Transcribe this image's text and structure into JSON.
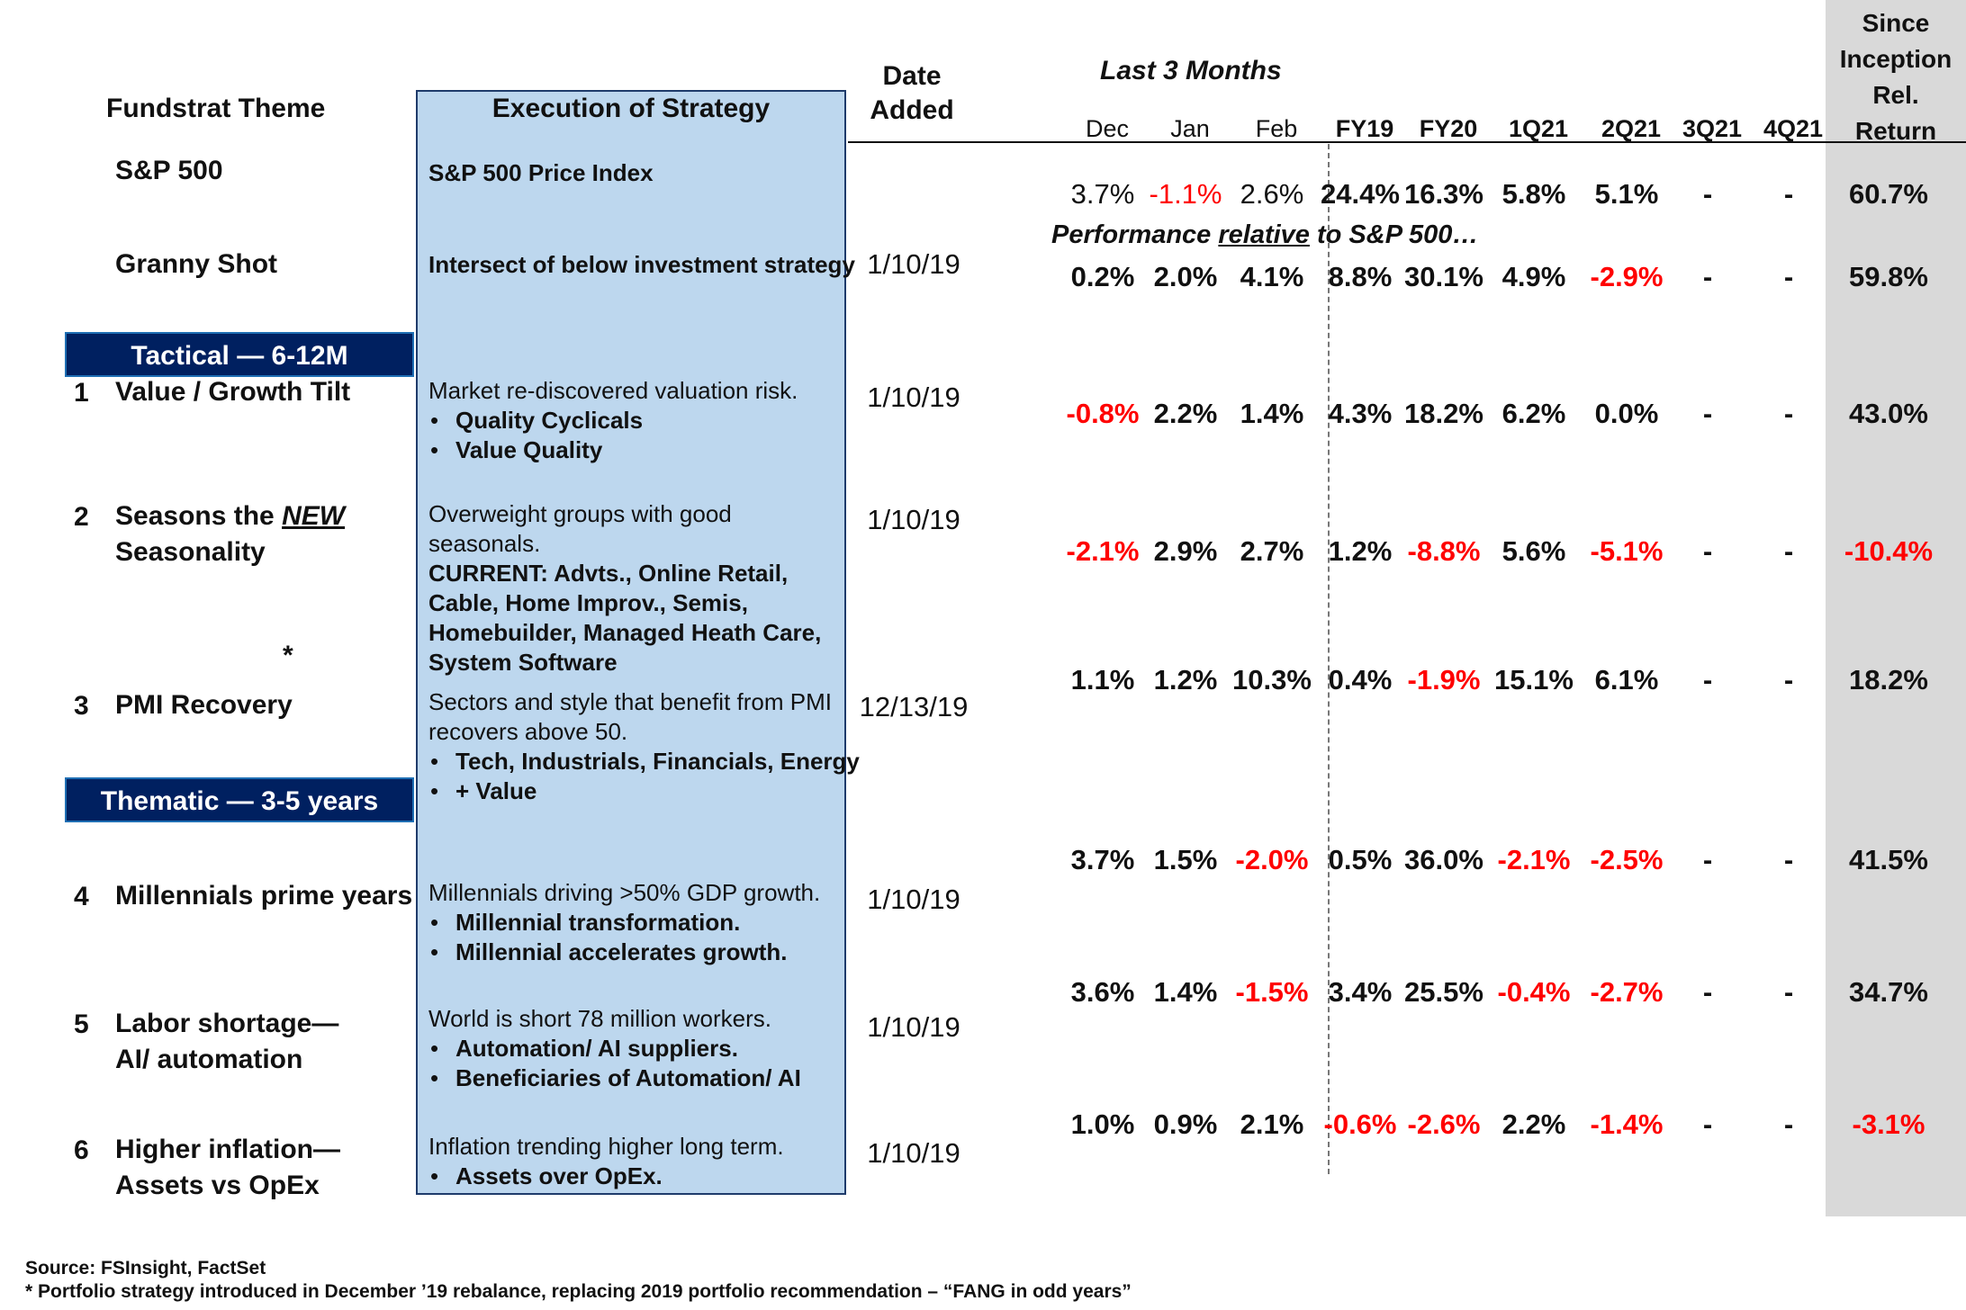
{
  "headers": {
    "theme": "Fundstrat Theme",
    "execution": "Execution of Strategy",
    "date_added": [
      "Date",
      "Added"
    ],
    "last3": "Last 3 Months",
    "since_inception": [
      "Since",
      "Inception",
      "Rel.",
      "Return"
    ],
    "columns": [
      "Dec",
      "Jan",
      "Feb",
      "FY19",
      "FY20",
      "1Q21",
      "2Q21",
      "3Q21",
      "4Q21"
    ]
  },
  "relative_note": {
    "prefix": "Performance ",
    "underlined": "relative",
    "suffix": " to S&P 500…"
  },
  "sections": {
    "tactical": "Tactical — 6-12M",
    "thematic": "Thematic  — 3-5 years"
  },
  "asterisk": "*",
  "rows": [
    {
      "num": "",
      "name": [
        "S&P 500"
      ],
      "exec_plain": "",
      "exec_bold": [
        "S&P 500 Price Index"
      ],
      "bullets": [],
      "date": "",
      "values": [
        "3.7%",
        "-1.1%",
        "2.6%",
        "24.4%",
        "16.3%",
        "5.8%",
        "5.1%",
        "-",
        "-",
        "60.7%"
      ]
    },
    {
      "num": "",
      "name": [
        "Granny Shot"
      ],
      "exec_plain": "",
      "exec_bold": [
        "Intersect of below investment strategy"
      ],
      "bullets": [],
      "date": "1/10/19",
      "values": [
        "0.2%",
        "2.0%",
        "4.1%",
        "8.8%",
        "30.1%",
        "4.9%",
        "-2.9%",
        "-",
        "-",
        "59.8%"
      ]
    },
    {
      "num": "1",
      "name": [
        "Value / Growth Tilt"
      ],
      "exec_plain": "Market re-discovered valuation risk.",
      "exec_bold": [],
      "bullets": [
        "Quality Cyclicals",
        "Value Quality"
      ],
      "date": "1/10/19",
      "values": [
        "-0.8%",
        "2.2%",
        "1.4%",
        "4.3%",
        "18.2%",
        "6.2%",
        "0.0%",
        "-",
        "-",
        "43.0%"
      ]
    },
    {
      "num": "2",
      "name": [
        "Seasons the ",
        "NEW",
        "Seasonality"
      ],
      "exec_plain": "Overweight groups with good|seasonals.",
      "exec_bold": [
        "CURRENT: Advts., Online Retail,",
        "Cable, Home Improv., Semis,",
        "Homebuilder, Managed Heath Care,",
        "System Software"
      ],
      "bullets": [],
      "date": "1/10/19",
      "values": [
        "-2.1%",
        "2.9%",
        "2.7%",
        "1.2%",
        "-8.8%",
        "5.6%",
        "-5.1%",
        "-",
        "-",
        "-10.4%"
      ]
    },
    {
      "num": "3",
      "name": [
        "PMI Recovery"
      ],
      "exec_plain": "Sectors and style that benefit from PMI|recovers above 50.",
      "exec_bold": [],
      "bullets": [
        "Tech, Industrials, Financials, Energy",
        "+ Value"
      ],
      "date": "12/13/19",
      "values": [
        "1.1%",
        "1.2%",
        "10.3%",
        "0.4%",
        "-1.9%",
        "15.1%",
        "6.1%",
        "-",
        "-",
        "18.2%"
      ]
    },
    {
      "num": "4",
      "name": [
        "Millennials prime years"
      ],
      "exec_plain": "Millennials driving >50% GDP growth.",
      "exec_bold": [],
      "bullets": [
        "Millennial transformation.",
        "Millennial accelerates growth."
      ],
      "date": "1/10/19",
      "values": [
        "3.7%",
        "1.5%",
        "-2.0%",
        "0.5%",
        "36.0%",
        "-2.1%",
        "-2.5%",
        "-",
        "-",
        "41.5%"
      ]
    },
    {
      "num": "5",
      "name": [
        "Labor shortage—",
        "AI/ automation"
      ],
      "exec_plain": "World is short 78 million workers.",
      "exec_bold": [],
      "bullets": [
        "Automation/ AI suppliers.",
        "Beneficiaries of Automation/ AI"
      ],
      "date": "1/10/19",
      "values": [
        "3.6%",
        "1.4%",
        "-1.5%",
        "3.4%",
        "25.5%",
        "-0.4%",
        "-2.7%",
        "-",
        "-",
        "34.7%"
      ]
    },
    {
      "num": "6",
      "name": [
        "Higher inflation—",
        "Assets vs OpEx"
      ],
      "exec_plain": "Inflation trending higher long term.",
      "exec_bold": [],
      "bullets": [
        "Assets over OpEx."
      ],
      "date": "1/10/19",
      "values": [
        "1.0%",
        "0.9%",
        "2.1%",
        "-0.6%",
        "-2.6%",
        "2.2%",
        "-1.4%",
        "-",
        "-",
        "-3.1%"
      ]
    }
  ],
  "footnotes": [
    "Source: FSInsight, FactSet",
    "* Portfolio strategy introduced in December ’19 rebalance, replacing 2019 portfolio recommendation – “FANG in odd years”"
  ],
  "colors": {
    "negative": "#ff0000",
    "section_bar": "#002060",
    "exec_box": "#bdd7ee",
    "since_column": "#d9d9d9"
  }
}
